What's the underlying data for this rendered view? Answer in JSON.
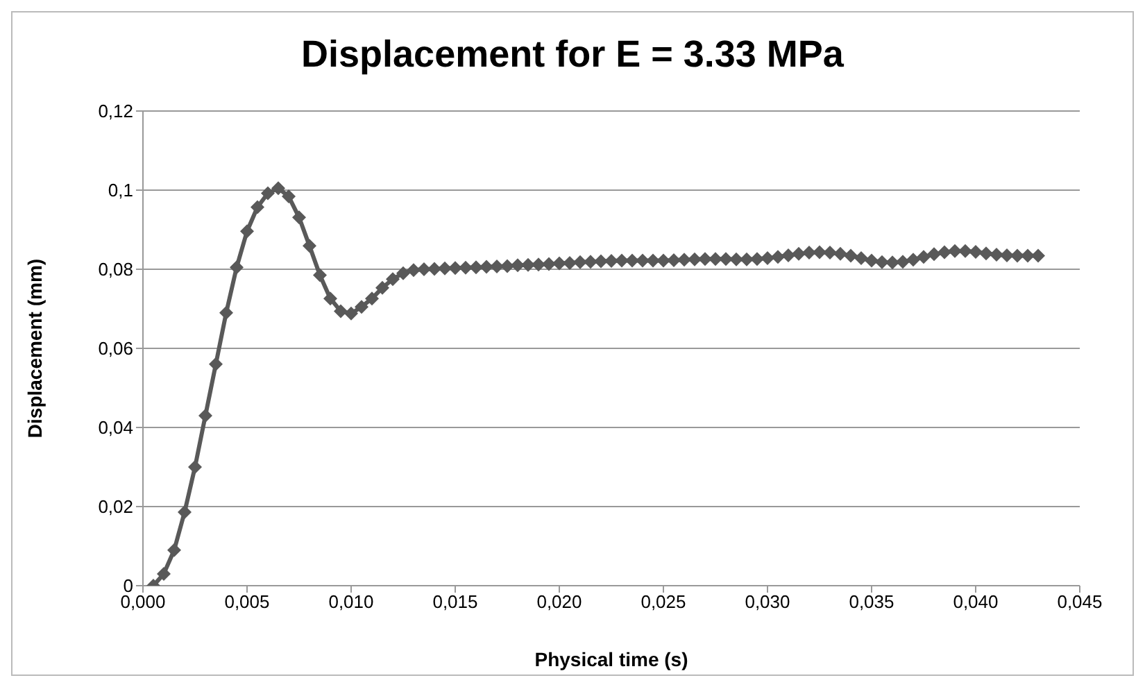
{
  "chart_data": {
    "type": "line",
    "title": "Displacement for E = 3.33 MPa",
    "xlabel": "Physical time (s)",
    "ylabel": "Displacement (mm)",
    "x": [
      0.0005,
      0.001,
      0.0015,
      0.002,
      0.0025,
      0.003,
      0.0035,
      0.004,
      0.0045,
      0.005,
      0.0055,
      0.006,
      0.0065,
      0.007,
      0.0075,
      0.008,
      0.0085,
      0.009,
      0.0095,
      0.01,
      0.0105,
      0.011,
      0.0115,
      0.012,
      0.0125,
      0.013,
      0.0135,
      0.014,
      0.0145,
      0.015,
      0.0155,
      0.016,
      0.0165,
      0.017,
      0.0175,
      0.018,
      0.0185,
      0.019,
      0.0195,
      0.02,
      0.0205,
      0.021,
      0.0215,
      0.022,
      0.0225,
      0.023,
      0.0235,
      0.024,
      0.0245,
      0.025,
      0.0255,
      0.026,
      0.0265,
      0.027,
      0.0275,
      0.028,
      0.0285,
      0.029,
      0.0295,
      0.03,
      0.0305,
      0.031,
      0.0315,
      0.032,
      0.0325,
      0.033,
      0.0335,
      0.034,
      0.0345,
      0.035,
      0.0355,
      0.036,
      0.0365,
      0.037,
      0.0375,
      0.038,
      0.0385,
      0.039,
      0.0395,
      0.04,
      0.0405,
      0.041,
      0.0415,
      0.042,
      0.0425,
      0.043
    ],
    "series": [
      {
        "color": "#595959",
        "values": [
          0,
          0.003,
          0.009,
          0.0186,
          0.03,
          0.043,
          0.056,
          0.069,
          0.0805,
          0.0896,
          0.0957,
          0.0992,
          0.1005,
          0.0984,
          0.0931,
          0.0859,
          0.0785,
          0.0726,
          0.0694,
          0.0688,
          0.0705,
          0.0726,
          0.0753,
          0.0775,
          0.079,
          0.0798,
          0.08,
          0.0801,
          0.0802,
          0.0803,
          0.0804,
          0.0805,
          0.0806,
          0.0807,
          0.0808,
          0.081,
          0.0811,
          0.0812,
          0.0813,
          0.0815,
          0.0816,
          0.0818,
          0.0819,
          0.082,
          0.0821,
          0.0822,
          0.0822,
          0.0822,
          0.0822,
          0.0822,
          0.0823,
          0.0824,
          0.0825,
          0.0826,
          0.0826,
          0.0826,
          0.0825,
          0.0825,
          0.0826,
          0.0828,
          0.0831,
          0.0835,
          0.0839,
          0.0842,
          0.0843,
          0.0842,
          0.0839,
          0.0834,
          0.0828,
          0.0822,
          0.0818,
          0.0817,
          0.0819,
          0.0824,
          0.0831,
          0.0838,
          0.0843,
          0.0846,
          0.0846,
          0.0844,
          0.084,
          0.0837,
          0.0835,
          0.0834,
          0.0834,
          0.0834
        ]
      }
    ],
    "xlim": [
      0,
      0.045
    ],
    "xticks": [
      {
        "value": 0,
        "label": "0,000"
      },
      {
        "value": 0.005,
        "label": "0,005"
      },
      {
        "value": 0.01,
        "label": "0,010"
      },
      {
        "value": 0.015,
        "label": "0,015"
      },
      {
        "value": 0.02,
        "label": "0,020"
      },
      {
        "value": 0.025,
        "label": "0,025"
      },
      {
        "value": 0.03,
        "label": "0,030"
      },
      {
        "value": 0.035,
        "label": "0,035"
      },
      {
        "value": 0.04,
        "label": "0,040"
      },
      {
        "value": 0.045,
        "label": "0,045"
      }
    ],
    "ylim": [
      0,
      0.12
    ],
    "yticks": [
      0,
      {
        "value": 0.02,
        "label": "0,02"
      },
      {
        "value": 0.04,
        "label": "0,04"
      },
      {
        "value": 0.06,
        "label": "0,06"
      },
      {
        "value": 0.08,
        "label": "0,08"
      },
      {
        "value": 0.1,
        "label": "0,1"
      },
      {
        "value": 0.12,
        "label": "0,12"
      }
    ],
    "grid": "y",
    "marker": "diamond",
    "line_style": "solid",
    "legend": false
  }
}
